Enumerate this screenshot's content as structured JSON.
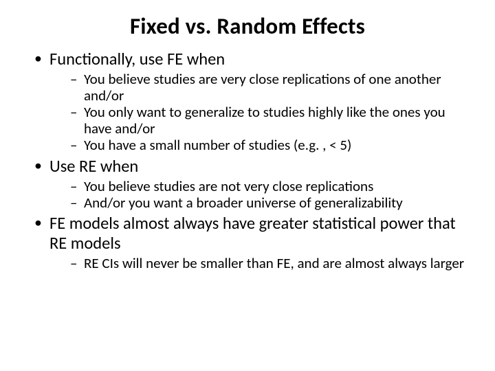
{
  "slide": {
    "title": "Fixed vs. Random Effects",
    "bullets": [
      {
        "text": "Functionally, use FE when",
        "sub": [
          "You believe studies are very close replications of one another and/or",
          "You only want to generalize to studies highly like the ones you have and/or",
          "You have a small number of studies (e.g. , < 5)"
        ]
      },
      {
        "text": "Use RE when",
        "sub": [
          "You believe studies are not very close replications",
          "And/or you want a broader universe of generalizability"
        ]
      },
      {
        "text": "FE models almost always have greater statistical power that RE models",
        "sub": [
          "RE CIs will never be smaller than FE, and are almost always larger"
        ]
      }
    ]
  },
  "style": {
    "background_color": "#ffffff",
    "text_color": "#000000",
    "title_fontsize": 33,
    "title_weight": 700,
    "level1_fontsize": 24.5,
    "level2_fontsize": 21,
    "font_family": "Calibri"
  }
}
